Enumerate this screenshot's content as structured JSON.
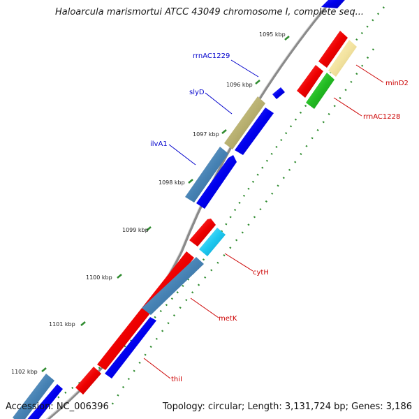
{
  "title": "Haloarcula marismortui ATCC 43049 chromosome I, complete seq...",
  "footer": {
    "accession": "Accession: NC_006396",
    "summary": "Topology: circular; Length: 3,131,724 bp; Genes: 3,186"
  },
  "colors": {
    "backbone": "#8a8a8a",
    "tick": "#2e8b2e",
    "label_forward": "#0000cc",
    "label_reverse": "#cc0000"
  },
  "kbp_ticks": [
    "1095 kbp",
    "1096 kbp",
    "1097 kbp",
    "1098 kbp",
    "1099 kbp",
    "1100 kbp",
    "1101 kbp",
    "1102 kbp"
  ],
  "genes": [
    {
      "name": "rrnAC1229",
      "label_color": "#0000cc"
    },
    {
      "name": "slyD",
      "label_color": "#0000cc"
    },
    {
      "name": "ilvA1",
      "label_color": "#0000cc"
    },
    {
      "name": "minD2",
      "label_color": "#cc0000"
    },
    {
      "name": "rrnAC1228",
      "label_color": "#cc0000"
    },
    {
      "name": "cytH",
      "label_color": "#cc0000"
    },
    {
      "name": "metK",
      "label_color": "#cc0000"
    },
    {
      "name": "thiI",
      "label_color": "#cc0000"
    }
  ]
}
